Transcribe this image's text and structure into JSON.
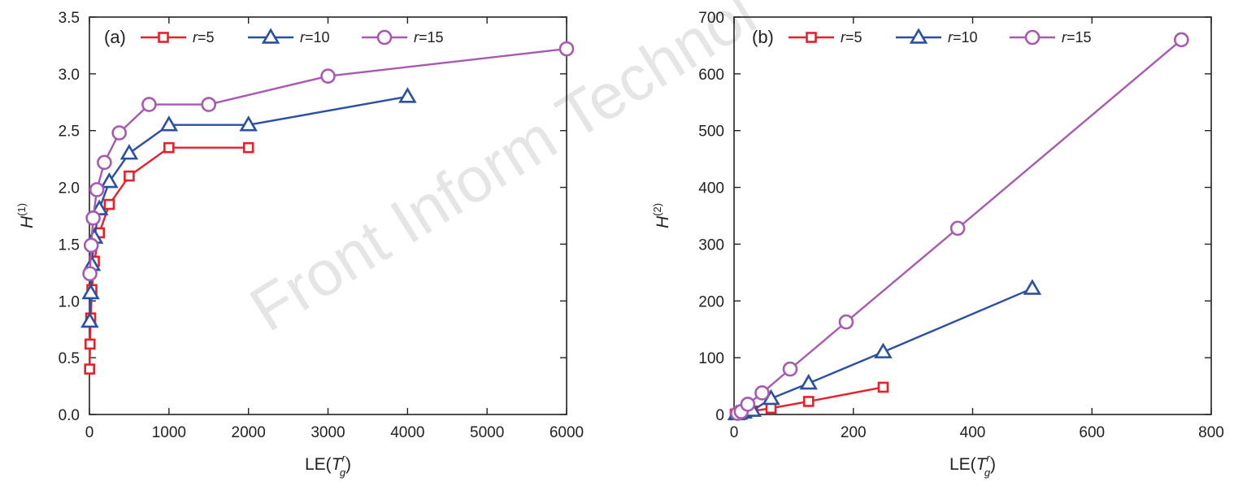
{
  "watermark": "Front Inform Technol",
  "colors": {
    "r5": "#e8202a",
    "r10": "#2a4fa3",
    "r15": "#a85ab0",
    "axis": "#222222"
  },
  "chart_data": [
    {
      "type": "line",
      "panel": "(a)",
      "xlabel_main": "LE(",
      "xlabel_sym": "T",
      "xlabel_sup": "r",
      "xlabel_sub": "g",
      "xlabel_close": ")",
      "ylabel_main": "H",
      "ylabel_sup": "(1)",
      "xlim": [
        0,
        6000
      ],
      "ylim": [
        0,
        3.5
      ],
      "xticks": [
        0,
        1000,
        2000,
        3000,
        4000,
        5000,
        6000
      ],
      "xtick_labels": [
        "0",
        "1000",
        "2000",
        "3000",
        "4000",
        "5000",
        "6000"
      ],
      "yticks": [
        0,
        0.5,
        1.0,
        1.5,
        2.0,
        2.5,
        3.0,
        3.5
      ],
      "ytick_labels": [
        "0.0",
        "0.5",
        "1.0",
        "1.5",
        "2.0",
        "2.5",
        "3.0",
        "3.5"
      ],
      "grid": false,
      "legend": "top-left",
      "series": [
        {
          "name_sym": "r",
          "name_val": "=5",
          "marker": "square",
          "color": "#e8202a",
          "x": [
            2,
            8,
            16,
            31,
            62,
            125,
            250,
            500,
            1000,
            2000
          ],
          "y": [
            0.4,
            0.62,
            0.85,
            1.1,
            1.35,
            1.6,
            1.85,
            2.1,
            2.35,
            2.35
          ]
        },
        {
          "name_sym": "r",
          "name_val": "=10",
          "marker": "triangle",
          "color": "#2a4fa3",
          "x": [
            4,
            16,
            31,
            62,
            125,
            250,
            500,
            1000,
            2000,
            4000
          ],
          "y": [
            0.82,
            1.07,
            1.32,
            1.56,
            1.81,
            2.05,
            2.3,
            2.55,
            2.55,
            2.8
          ]
        },
        {
          "name_sym": "r",
          "name_val": "=15",
          "marker": "circle",
          "color": "#a85ab0",
          "x": [
            6,
            23,
            47,
            94,
            188,
            375,
            750,
            1500,
            3000,
            6000
          ],
          "y": [
            1.24,
            1.49,
            1.73,
            1.98,
            2.22,
            2.48,
            2.73,
            2.73,
            2.98,
            3.22
          ]
        }
      ]
    },
    {
      "type": "line",
      "panel": "(b)",
      "xlabel_main": "LE(",
      "xlabel_sym": "T",
      "xlabel_sup": "r",
      "xlabel_sub": "g",
      "xlabel_close": ")",
      "ylabel_main": "H",
      "ylabel_sup": "(2)",
      "xlim": [
        0,
        800
      ],
      "ylim": [
        0,
        700
      ],
      "xticks": [
        0,
        200,
        400,
        600,
        800
      ],
      "xtick_labels": [
        "0",
        "200",
        "400",
        "600",
        "800"
      ],
      "yticks": [
        0,
        100,
        200,
        300,
        400,
        500,
        600,
        700
      ],
      "ytick_labels": [
        "0",
        "100",
        "200",
        "300",
        "400",
        "500",
        "600",
        "700"
      ],
      "grid": false,
      "legend": "top-left",
      "series": [
        {
          "name_sym": "r",
          "name_val": "=5",
          "marker": "square",
          "color": "#e8202a",
          "x": [
            2,
            4,
            8,
            16,
            31,
            62,
            125,
            250
          ],
          "y": [
            0.4,
            1,
            2,
            3,
            6,
            11,
            23,
            48
          ]
        },
        {
          "name_sym": "r",
          "name_val": "=10",
          "marker": "triangle",
          "color": "#2a4fa3",
          "x": [
            4,
            8,
            16,
            31,
            62,
            125,
            250,
            500
          ],
          "y": [
            1,
            2,
            4,
            7,
            28,
            55,
            110,
            222
          ]
        },
        {
          "name_sym": "r",
          "name_val": "=15",
          "marker": "circle",
          "color": "#a85ab0",
          "x": [
            6,
            12,
            23,
            47,
            94,
            188,
            375,
            750
          ],
          "y": [
            2,
            5,
            18,
            38,
            80,
            163,
            328,
            660
          ]
        }
      ]
    }
  ]
}
